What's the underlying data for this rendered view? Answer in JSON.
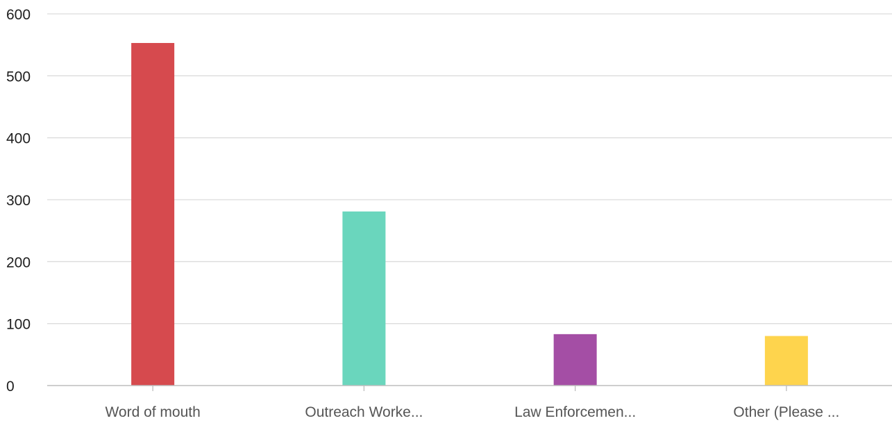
{
  "chart_data": {
    "type": "bar",
    "categories": [
      "Word of mouth",
      "Outreach Worke...",
      "Law Enforcemen...",
      "Other (Please ..."
    ],
    "values": [
      553,
      281,
      83,
      80
    ],
    "colors": [
      "#d64a4e",
      "#6ad6bd",
      "#a44ea5",
      "#fed44d"
    ],
    "ylim": [
      0,
      600
    ],
    "yticks": [
      "0",
      "100",
      "200",
      "300",
      "400",
      "500",
      "600"
    ],
    "grid": true,
    "legend": "none"
  }
}
